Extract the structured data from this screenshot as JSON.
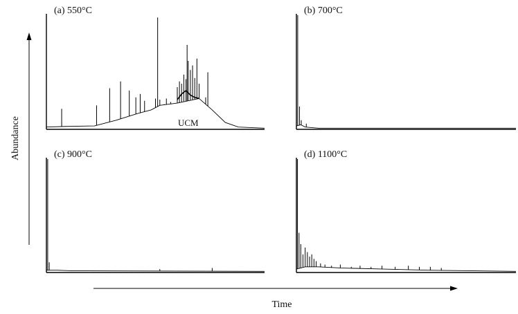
{
  "figure": {
    "xlabel": "Time",
    "ylabel": "Abundance"
  },
  "chart_data": [
    {
      "type": "line",
      "panel": "a",
      "title": "(a) 550°C",
      "annotation": "UCM",
      "xlim": [
        0,
        100
      ],
      "ylim": [
        0,
        100
      ],
      "baseline_points": [
        [
          0,
          2
        ],
        [
          8,
          2.5
        ],
        [
          22,
          3
        ],
        [
          32,
          8
        ],
        [
          42,
          14
        ],
        [
          48,
          17
        ],
        [
          52,
          21
        ],
        [
          60,
          23
        ],
        [
          70,
          27
        ],
        [
          76,
          17
        ],
        [
          82,
          6
        ],
        [
          88,
          2
        ],
        [
          100,
          1
        ]
      ],
      "hump_points": [
        [
          60,
          26
        ],
        [
          62,
          31
        ],
        [
          64,
          34
        ],
        [
          66,
          30
        ],
        [
          68,
          28
        ],
        [
          70,
          27
        ]
      ],
      "peaks": [
        {
          "x": 7,
          "y": 18
        },
        {
          "x": 23,
          "y": 21
        },
        {
          "x": 29,
          "y": 36
        },
        {
          "x": 38,
          "y": 34
        },
        {
          "x": 41,
          "y": 28
        },
        {
          "x": 43,
          "y": 31
        },
        {
          "x": 45,
          "y": 25
        },
        {
          "x": 50,
          "y": 27
        },
        {
          "x": 52,
          "y": 26
        },
        {
          "x": 54,
          "y": 22
        },
        {
          "x": 55,
          "y": 27
        },
        {
          "x": 57,
          "y": 24
        },
        {
          "x": 60,
          "y": 37
        },
        {
          "x": 61,
          "y": 42
        },
        {
          "x": 62,
          "y": 40
        },
        {
          "x": 63,
          "y": 48
        },
        {
          "x": 64,
          "y": 44
        },
        {
          "x": 65,
          "y": 60
        },
        {
          "x": 66,
          "y": 52
        },
        {
          "x": 67,
          "y": 56
        },
        {
          "x": 68,
          "y": 45
        },
        {
          "x": 70,
          "y": 40
        },
        {
          "x": 73,
          "y": 28
        },
        {
          "x": 51,
          "y": 98
        },
        {
          "x": 64.5,
          "y": 74
        },
        {
          "x": 69,
          "y": 62
        },
        {
          "x": 74,
          "y": 50
        },
        {
          "x": 34,
          "y": 42
        }
      ]
    },
    {
      "type": "line",
      "panel": "b",
      "title": "(b) 700°C",
      "xlim": [
        0,
        100
      ],
      "ylim": [
        0,
        100
      ],
      "baseline_points": [
        [
          0,
          3
        ],
        [
          2,
          4
        ],
        [
          4,
          2
        ],
        [
          10,
          1
        ],
        [
          100,
          1
        ]
      ],
      "peaks": [
        {
          "x": 0.6,
          "y": 100
        },
        {
          "x": 1.4,
          "y": 20
        },
        {
          "x": 2.2,
          "y": 8
        },
        {
          "x": 4.5,
          "y": 5
        }
      ]
    },
    {
      "type": "line",
      "panel": "c",
      "title": "(c) 900°C",
      "xlim": [
        0,
        100
      ],
      "ylim": [
        0,
        100
      ],
      "baseline_points": [
        [
          0,
          2
        ],
        [
          5,
          2
        ],
        [
          12,
          1.5
        ],
        [
          100,
          1
        ]
      ],
      "peaks": [
        {
          "x": 0.6,
          "y": 100
        },
        {
          "x": 1.3,
          "y": 9
        },
        {
          "x": 52,
          "y": 3
        },
        {
          "x": 76,
          "y": 4
        }
      ]
    },
    {
      "type": "line",
      "panel": "d",
      "title": "(d) 1100°C",
      "xlim": [
        0,
        100
      ],
      "ylim": [
        0,
        100
      ],
      "baseline_points": [
        [
          0,
          3
        ],
        [
          4,
          5
        ],
        [
          10,
          5
        ],
        [
          20,
          4
        ],
        [
          40,
          3
        ],
        [
          60,
          2
        ],
        [
          100,
          1
        ]
      ],
      "peaks": [
        {
          "x": 0.5,
          "y": 100
        },
        {
          "x": 1.2,
          "y": 35
        },
        {
          "x": 2,
          "y": 25
        },
        {
          "x": 3,
          "y": 16
        },
        {
          "x": 4,
          "y": 22
        },
        {
          "x": 5,
          "y": 18
        },
        {
          "x": 6,
          "y": 14
        },
        {
          "x": 7,
          "y": 16
        },
        {
          "x": 8,
          "y": 12
        },
        {
          "x": 9,
          "y": 10
        },
        {
          "x": 11,
          "y": 8
        },
        {
          "x": 13,
          "y": 7
        },
        {
          "x": 16,
          "y": 6
        },
        {
          "x": 20,
          "y": 7
        },
        {
          "x": 25,
          "y": 5
        },
        {
          "x": 29,
          "y": 6
        },
        {
          "x": 34,
          "y": 5
        },
        {
          "x": 39,
          "y": 6
        },
        {
          "x": 45,
          "y": 5
        },
        {
          "x": 51,
          "y": 6
        },
        {
          "x": 56,
          "y": 5
        },
        {
          "x": 61,
          "y": 5
        },
        {
          "x": 66,
          "y": 4
        }
      ]
    }
  ]
}
